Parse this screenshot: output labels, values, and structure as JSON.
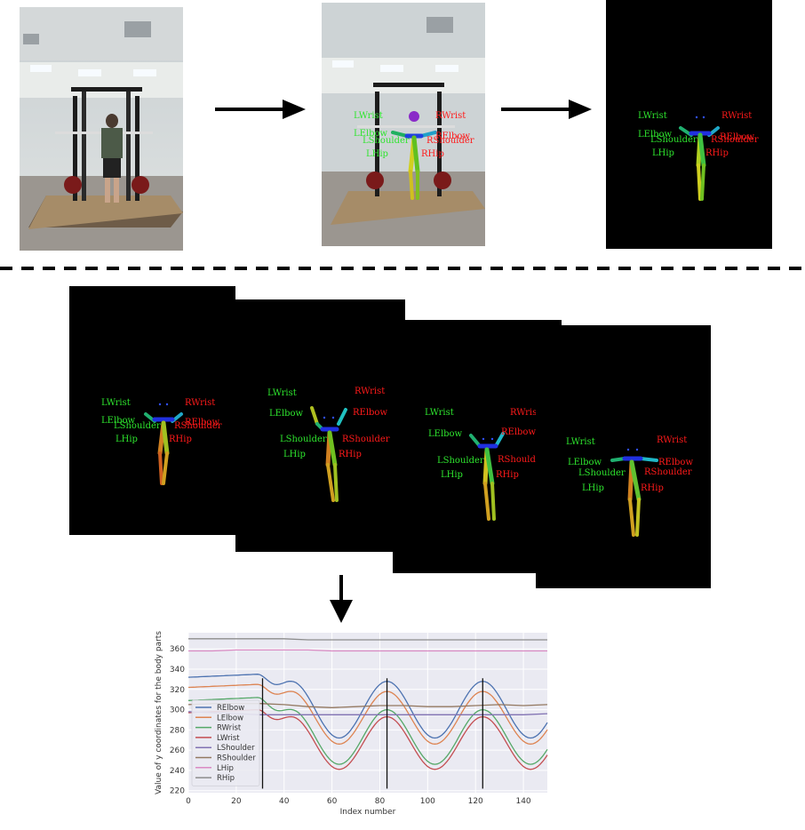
{
  "keypoint_labels": {
    "lwrist": "LWrist",
    "rwrist": "RWrist",
    "lelbow": "LElbow",
    "relbow": "RElbow",
    "lshoulder": "LShoulder",
    "rshoulder": "RShoulder",
    "lhip": "LHip",
    "rhip": "RHip"
  },
  "colors": {
    "left_label": "#2ee52e",
    "right_label": "#ff1a1a",
    "frame_background": "#000000"
  },
  "chart_data": {
    "type": "line",
    "title": "",
    "xlabel": "Index number",
    "ylabel": "Value of y coordinates for the body parts",
    "xlim": [
      0,
      150
    ],
    "ylim": [
      218,
      376
    ],
    "xticks": [
      0,
      20,
      40,
      60,
      80,
      100,
      120,
      140
    ],
    "yticks": [
      220,
      240,
      260,
      280,
      300,
      320,
      340,
      360
    ],
    "grid": true,
    "legend_position": "lower-left",
    "vertical_markers_x": [
      31,
      83,
      123
    ],
    "series": [
      {
        "name": "RElbow",
        "color": "#4c72b0",
        "kind": "wave",
        "base": 300,
        "amp": 28,
        "start": 332
      },
      {
        "name": "LElbow",
        "color": "#dd8452",
        "kind": "wave",
        "base": 292,
        "amp": 26,
        "start": 322
      },
      {
        "name": "RWrist",
        "color": "#55a868",
        "kind": "wave",
        "base": 273,
        "amp": 27,
        "start": 309
      },
      {
        "name": "LWrist",
        "color": "#c44e52",
        "kind": "wave",
        "base": 267,
        "amp": 26,
        "start": 297
      },
      {
        "name": "LShoulder",
        "color": "#8172b3",
        "kind": "flat",
        "values": [
          298,
          297,
          296,
          295,
          295,
          295,
          295,
          295,
          295,
          295,
          295,
          295,
          295,
          295,
          295,
          296
        ]
      },
      {
        "name": "RShoulder",
        "color": "#937860",
        "kind": "flat",
        "values": [
          305,
          306,
          306,
          306,
          305,
          303,
          302,
          303,
          304,
          304,
          303,
          303,
          304,
          305,
          304,
          305
        ]
      },
      {
        "name": "LHip",
        "color": "#da8bc3",
        "kind": "flat",
        "values": [
          358,
          358,
          359,
          359,
          359,
          359,
          358,
          358,
          358,
          358,
          358,
          358,
          358,
          358,
          358,
          358
        ]
      },
      {
        "name": "RHip",
        "color": "#8c8c8c",
        "kind": "flat",
        "values": [
          370,
          370,
          370,
          370,
          370,
          369,
          369,
          369,
          369,
          369,
          369,
          369,
          369,
          369,
          369,
          369
        ]
      }
    ]
  }
}
